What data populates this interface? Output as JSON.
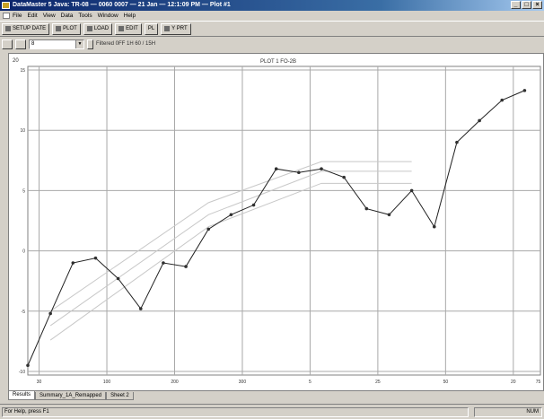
{
  "window": {
    "title": "DataMaster 5 Java: TR-08 — 0060 0007 — 21 Jan — 12:1:09 PM — Plot #1",
    "minimize_label": "_",
    "maximize_label": "□",
    "close_label": "×"
  },
  "menu": {
    "items": [
      "File",
      "Edit",
      "View",
      "Data",
      "Tools",
      "Window",
      "Help"
    ]
  },
  "toolbar": {
    "buttons": [
      "SETUP DATE",
      "PLOT",
      "LOAD",
      "EDIT",
      "PL",
      "Y PRT"
    ]
  },
  "selector": {
    "combo_value": "8",
    "filter_text": "Filtered 0FF 1H 60 / 15H"
  },
  "chart_data": {
    "type": "line",
    "title": "PLOT 1 FO-2B",
    "y_max_label": "20",
    "x_tick_labels": [
      "30",
      "100",
      "200",
      "300",
      "5",
      "25",
      "50",
      "20",
      "75"
    ],
    "y_tick_labels": [
      "15",
      "10",
      "5",
      "0",
      "-5",
      "-10"
    ],
    "series": [
      {
        "values": [
          {
            "x": 0,
            "y": -9.5
          },
          {
            "x": 1,
            "y": -5.2
          },
          {
            "x": 2,
            "y": -1.0
          },
          {
            "x": 3,
            "y": -0.6
          },
          {
            "x": 4,
            "y": -2.3
          },
          {
            "x": 5,
            "y": -4.8
          },
          {
            "x": 6,
            "y": -1.0
          },
          {
            "x": 7,
            "y": -1.3
          },
          {
            "x": 8,
            "y": 1.8
          },
          {
            "x": 9,
            "y": 3.0
          },
          {
            "x": 10,
            "y": 3.8
          },
          {
            "x": 11,
            "y": 6.8
          },
          {
            "x": 12,
            "y": 6.5
          },
          {
            "x": 13,
            "y": 6.8
          },
          {
            "x": 14,
            "y": 6.1
          },
          {
            "x": 15,
            "y": 3.5
          },
          {
            "x": 16,
            "y": 3.0
          },
          {
            "x": 17,
            "y": 5.0
          },
          {
            "x": 18,
            "y": 2.0
          },
          {
            "x": 19,
            "y": 9.0
          },
          {
            "x": 20,
            "y": 10.8
          },
          {
            "x": 21,
            "y": 12.5
          },
          {
            "x": 22,
            "y": 13.3
          }
        ]
      }
    ],
    "reference_lines": [
      {
        "points": [
          {
            "x": 1,
            "y": -5.0
          },
          {
            "x": 8,
            "y": 4.0
          },
          {
            "x": 13,
            "y": 7.4
          },
          {
            "x": 17,
            "y": 7.4
          }
        ]
      },
      {
        "points": [
          {
            "x": 1,
            "y": -6.2
          },
          {
            "x": 8,
            "y": 3.0
          },
          {
            "x": 13,
            "y": 6.6
          },
          {
            "x": 17,
            "y": 6.6
          }
        ]
      },
      {
        "points": [
          {
            "x": 1,
            "y": -7.4
          },
          {
            "x": 8,
            "y": 2.0
          },
          {
            "x": 13,
            "y": 5.6
          },
          {
            "x": 17,
            "y": 5.6
          }
        ]
      }
    ],
    "x_range": [
      0,
      22.7
    ],
    "ylim": [
      -10.3,
      15.3
    ],
    "grid": true,
    "line_color": "#202020",
    "marker_color": "#303030",
    "reference_line_color": "#c8c8c8",
    "grid_color": "#a8a8a8"
  },
  "tabs": [
    "Results",
    "Summary_1A_Remapped",
    "Sheet 2"
  ],
  "status": {
    "left_text": "For Help, press F1",
    "right_text": "NUM"
  }
}
